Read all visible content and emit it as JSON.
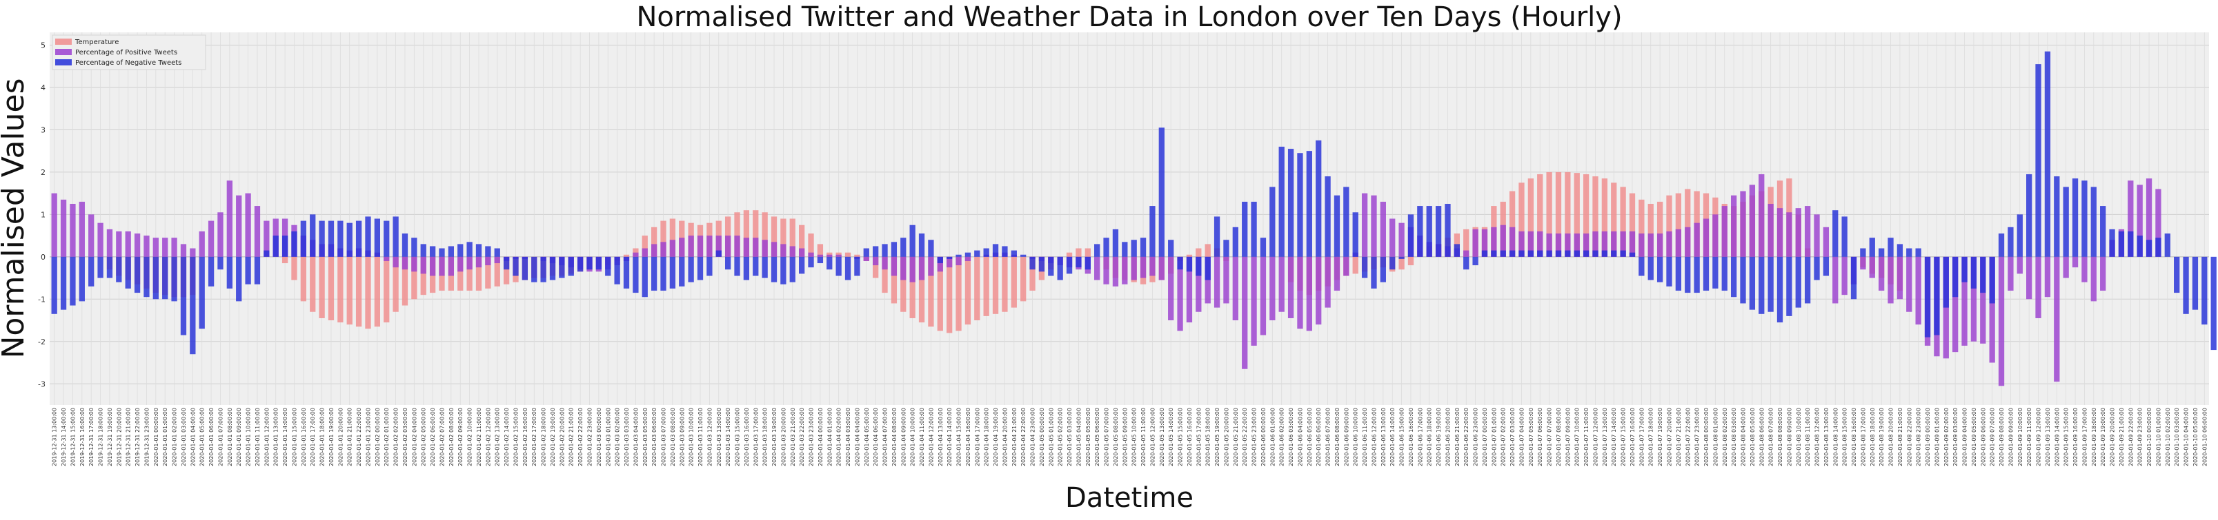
{
  "chart_data": {
    "type": "bar",
    "title": "Normalised Twitter and Weather Data in London over Ten Days (Hourly)",
    "xlabel": "Datetime",
    "ylabel": "Normalised Values",
    "ylim": [
      -3.5,
      5.3
    ],
    "yticks": [
      -3,
      -2,
      -1,
      0,
      1,
      2,
      3,
      4,
      5
    ],
    "grid": true,
    "legend_position": "top-left",
    "start_datetime": "2019-12-31 13:00:00",
    "x": {
      "start": "2019-12-31 13:00:00",
      "step": "1 hour",
      "count": 240
    },
    "series": [
      {
        "name": "Temperature",
        "color": "#f08c8c",
        "values": [
          0,
          0,
          0,
          0,
          0,
          0,
          -0.3,
          -0.45,
          -0.55,
          -0.65,
          -0.75,
          -0.85,
          -0.9,
          -0.95,
          -0.95,
          -0.9,
          0,
          0,
          0,
          0,
          0,
          0,
          0,
          0,
          0,
          -0.15,
          -0.55,
          -1.05,
          -1.3,
          -1.45,
          -1.5,
          -1.55,
          -1.6,
          -1.65,
          -1.7,
          -1.65,
          -1.55,
          -1.3,
          -1.15,
          -1.0,
          -0.9,
          -0.85,
          -0.8,
          -0.8,
          -0.8,
          -0.8,
          -0.8,
          -0.75,
          -0.7,
          -0.65,
          -0.6,
          -0.55,
          -0.5,
          -0.5,
          -0.45,
          -0.45,
          -0.4,
          -0.35,
          -0.3,
          -0.25,
          -0.2,
          -0.1,
          0.05,
          0.2,
          0.5,
          0.7,
          0.85,
          0.9,
          0.85,
          0.8,
          0.75,
          0.8,
          0.85,
          0.95,
          1.05,
          1.1,
          1.1,
          1.05,
          0.95,
          0.9,
          0.9,
          0.75,
          0.55,
          0.3,
          0.1,
          0.1,
          0.1,
          0.05,
          -0.1,
          -0.5,
          -0.85,
          -1.1,
          -1.3,
          -1.45,
          -1.55,
          -1.65,
          -1.75,
          -1.8,
          -1.75,
          -1.6,
          -1.5,
          -1.4,
          -1.35,
          -1.3,
          -1.2,
          -1.05,
          -0.8,
          -0.55,
          -0.3,
          0.0,
          0.1,
          0.2,
          0.2,
          0.0,
          -0.3,
          -0.5,
          -0.55,
          -0.6,
          -0.65,
          -0.6,
          -0.55,
          -0.4,
          -0.1,
          0.05,
          0.2,
          0.3,
          0.2,
          -0.1,
          0,
          0,
          0,
          0,
          0,
          0,
          -0.6,
          -0.8,
          -0.9,
          -0.8,
          -0.7,
          -0.55,
          -0.45,
          -0.4,
          -0.35,
          -0.3,
          -0.25,
          -0.35,
          -0.3,
          -0.2,
          0.15,
          0.25,
          0.3,
          0.45,
          0.55,
          0.65,
          0.7,
          0.7,
          1.2,
          1.3,
          1.55,
          1.75,
          1.85,
          1.95,
          2.0,
          2.0,
          2.0,
          1.98,
          1.95,
          1.9,
          1.85,
          1.75,
          1.65,
          1.5,
          1.35,
          1.25,
          1.3,
          1.45,
          1.5,
          1.6,
          1.55,
          1.5,
          1.4,
          1.25,
          1.2,
          1.3,
          1.45,
          1.55,
          1.65,
          1.8,
          1.85,
          1.0,
          0.2,
          0,
          0,
          0,
          0,
          0,
          -0.25,
          -0.4,
          -0.5,
          -0.65,
          -0.8,
          0,
          0,
          0,
          0,
          0,
          0,
          0,
          0,
          0,
          0,
          0,
          0,
          0,
          0,
          0,
          0,
          0,
          0,
          0,
          0,
          0,
          0,
          0,
          0,
          0,
          0,
          0,
          0,
          0,
          0,
          0,
          0,
          0
        ]
      },
      {
        "name": "Percentage of Positive Tweets",
        "color": "#9b3fd0",
        "values": [
          1.5,
          1.35,
          1.25,
          1.3,
          1.0,
          0.8,
          0.65,
          0.6,
          0.6,
          0.55,
          0.5,
          0.45,
          0.45,
          0.45,
          0.3,
          0.2,
          0.6,
          0.85,
          1.05,
          1.8,
          1.45,
          1.5,
          1.2,
          0.85,
          0.9,
          0.9,
          0.75,
          0.5,
          0.4,
          0.3,
          0.3,
          0.2,
          0.15,
          0.2,
          0.15,
          0.1,
          -0.1,
          -0.25,
          -0.3,
          -0.35,
          -0.4,
          -0.45,
          -0.45,
          -0.45,
          -0.35,
          -0.3,
          -0.25,
          -0.2,
          -0.15,
          -0.1,
          -0.05,
          -0.05,
          0,
          -0.1,
          -0.15,
          -0.2,
          -0.25,
          -0.3,
          -0.35,
          -0.35,
          -0.3,
          -0.2,
          -0.1,
          0.1,
          0.2,
          0.3,
          0.35,
          0.4,
          0.45,
          0.5,
          0.5,
          0.5,
          0.5,
          0.5,
          0.5,
          0.45,
          0.45,
          0.4,
          0.35,
          0.3,
          0.25,
          0.2,
          0.1,
          0.05,
          0.05,
          0.05,
          0,
          -0.05,
          -0.1,
          -0.2,
          -0.3,
          -0.45,
          -0.55,
          -0.6,
          -0.55,
          -0.45,
          -0.35,
          -0.25,
          -0.2,
          -0.1,
          0,
          0.05,
          0.1,
          0.1,
          0.05,
          0,
          -0.05,
          -0.1,
          -0.15,
          -0.2,
          -0.25,
          -0.3,
          -0.4,
          -0.55,
          -0.65,
          -0.7,
          -0.65,
          -0.55,
          -0.5,
          -0.45,
          -0.55,
          -1.5,
          -1.75,
          -1.55,
          -1.3,
          -1.1,
          -1.2,
          -1.1,
          -1.5,
          -2.65,
          -2.1,
          -1.85,
          -1.5,
          -1.3,
          -1.45,
          -1.7,
          -1.75,
          -1.6,
          -1.2,
          -0.8,
          -0.45,
          0.1,
          1.5,
          1.45,
          1.3,
          0.9,
          0.8,
          0.7,
          0.5,
          0.35,
          0.3,
          0.25,
          0.2,
          0.15,
          0.65,
          0.65,
          0.7,
          0.75,
          0.7,
          0.6,
          0.6,
          0.6,
          0.55,
          0.55,
          0.55,
          0.55,
          0.55,
          0.6,
          0.6,
          0.6,
          0.6,
          0.6,
          0.55,
          0.55,
          0.55,
          0.6,
          0.65,
          0.7,
          0.8,
          0.9,
          1.0,
          1.2,
          1.45,
          1.55,
          1.7,
          1.95,
          1.25,
          1.15,
          1.05,
          1.15,
          1.2,
          1.0,
          0.7,
          -1.1,
          -0.9,
          -0.65,
          -0.3,
          -0.5,
          -0.8,
          -1.1,
          -1.0,
          -1.3,
          -1.6,
          -2.1,
          -2.35,
          -2.4,
          -2.25,
          -2.1,
          -2.0,
          -2.05,
          -2.5,
          -3.05,
          -0.8,
          -0.4,
          -1.0,
          -1.45,
          -0.95,
          -2.95,
          -0.5,
          -0.25,
          -0.6,
          -1.05,
          -0.8,
          0.4,
          0.65,
          1.8,
          1.7,
          1.85,
          1.6
        ]
      },
      {
        "name": "Percentage of Negative Tweets",
        "color": "#2530d8",
        "values": [
          -1.35,
          -1.25,
          -1.15,
          -1.05,
          -0.7,
          -0.5,
          -0.5,
          -0.6,
          -0.75,
          -0.85,
          -0.95,
          -1.0,
          -1.0,
          -1.05,
          -1.85,
          -2.3,
          -1.7,
          -0.7,
          -0.3,
          -0.75,
          -1.05,
          -0.65,
          -0.65,
          0.15,
          0.5,
          0.5,
          0.6,
          0.85,
          1.0,
          0.85,
          0.85,
          0.85,
          0.8,
          0.85,
          0.95,
          0.9,
          0.85,
          0.95,
          0.55,
          0.45,
          0.3,
          0.25,
          0.2,
          0.25,
          0.3,
          0.35,
          0.3,
          0.25,
          0.2,
          -0.3,
          -0.45,
          -0.55,
          -0.6,
          -0.6,
          -0.55,
          -0.5,
          -0.45,
          -0.35,
          -0.3,
          -0.3,
          -0.45,
          -0.65,
          -0.75,
          -0.85,
          -0.95,
          -0.8,
          -0.8,
          -0.75,
          -0.7,
          -0.6,
          -0.55,
          -0.45,
          0.15,
          -0.3,
          -0.45,
          -0.55,
          -0.45,
          -0.5,
          -0.6,
          -0.65,
          -0.6,
          -0.4,
          -0.25,
          -0.15,
          -0.3,
          -0.45,
          -0.55,
          -0.45,
          0.2,
          0.25,
          0.3,
          0.35,
          0.45,
          0.75,
          0.55,
          0.4,
          -0.15,
          -0.05,
          0.05,
          0.1,
          0.15,
          0.2,
          0.3,
          0.25,
          0.15,
          0.05,
          -0.3,
          -0.35,
          -0.45,
          -0.55,
          -0.4,
          -0.25,
          -0.3,
          0.3,
          0.45,
          0.65,
          0.35,
          0.4,
          0.45,
          1.2,
          3.05,
          0.4,
          -0.3,
          -0.35,
          -0.45,
          -0.55,
          0.95,
          0.4,
          0.7,
          1.3,
          1.3,
          0.45,
          1.65,
          2.6,
          2.55,
          2.45,
          2.5,
          2.75,
          1.9,
          1.45,
          1.65,
          1.05,
          -0.5,
          -0.75,
          -0.6,
          -0.3,
          -0.05,
          1.0,
          1.2,
          1.2,
          1.2,
          1.25,
          0.3,
          -0.3,
          -0.2,
          0.15,
          0.15,
          0.15,
          0.15,
          0.15,
          0.15,
          0.15,
          0.15,
          0.15,
          0.15,
          0.15,
          0.15,
          0.15,
          0.15,
          0.15,
          0.15,
          0.1,
          -0.45,
          -0.55,
          -0.6,
          -0.7,
          -0.8,
          -0.85,
          -0.85,
          -0.8,
          -0.75,
          -0.8,
          -0.95,
          -1.1,
          -1.25,
          -1.35,
          -1.3,
          -1.55,
          -1.4,
          -1.2,
          -1.1,
          -0.55,
          -0.45,
          1.1,
          0.95,
          -1.0,
          0.2,
          0.45,
          0.2,
          0.45,
          0.3,
          0.2,
          0.2,
          -1.9,
          -1.85,
          -1.2,
          -0.95,
          -0.6,
          -0.75,
          -0.85,
          -1.1,
          0.55,
          0.7,
          1.0,
          1.95,
          4.55,
          4.85,
          1.9,
          1.65,
          1.85,
          1.8,
          1.65,
          1.2,
          0.65,
          0.6,
          0.6,
          0.5,
          0.4,
          0.45,
          0.55,
          -0.85,
          -1.35,
          -1.25,
          -1.6,
          -2.2
        ]
      }
    ]
  }
}
